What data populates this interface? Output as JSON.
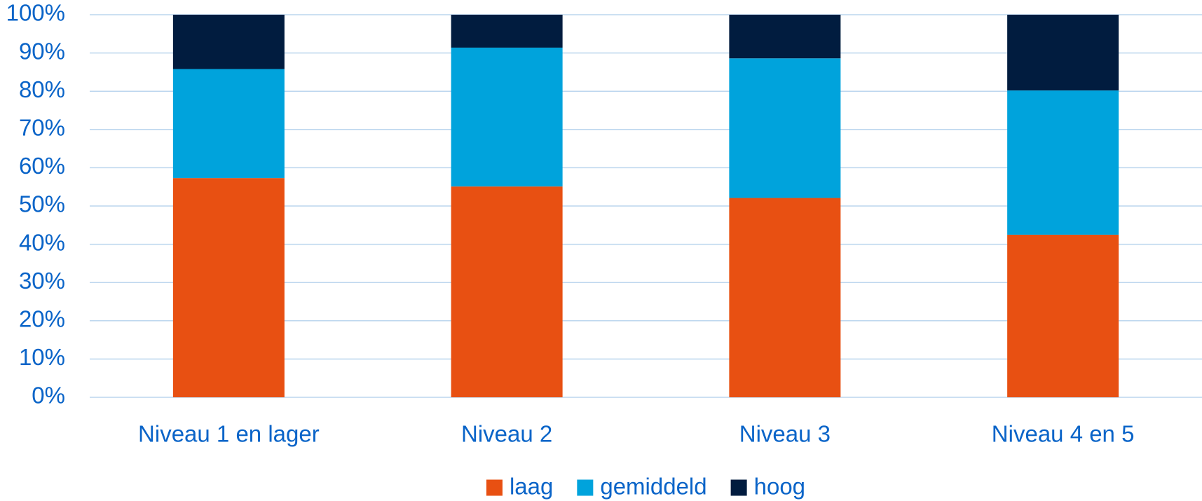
{
  "chart_data": {
    "type": "stacked_bar",
    "categories": [
      "Niveau 1 en lager",
      "Niveau 2",
      "Niveau 3",
      "Niveau 4 en 5"
    ],
    "series": [
      {
        "name": "laag",
        "color": "#e85012",
        "values": [
          57.3,
          55.1,
          52.1,
          42.5
        ]
      },
      {
        "name": "gemiddeld",
        "color": "#00a3dc",
        "values": [
          28.5,
          36.3,
          36.5,
          37.7
        ]
      },
      {
        "name": "hoog",
        "color": "#011c3f",
        "values": [
          14.2,
          8.6,
          11.4,
          19.8
        ]
      }
    ],
    "ylim": [
      0,
      100
    ],
    "yticks": [
      {
        "value": 0,
        "label": "0%"
      },
      {
        "value": 10,
        "label": "10%"
      },
      {
        "value": 20,
        "label": "20%"
      },
      {
        "value": 30,
        "label": "30%"
      },
      {
        "value": 40,
        "label": "40%"
      },
      {
        "value": 50,
        "label": "50%"
      },
      {
        "value": 60,
        "label": "60%"
      },
      {
        "value": 70,
        "label": "70%"
      },
      {
        "value": 80,
        "label": "80%"
      },
      {
        "value": 90,
        "label": "90%"
      },
      {
        "value": 100,
        "label": "100%"
      }
    ],
    "grid": true,
    "legend": "bottom"
  }
}
